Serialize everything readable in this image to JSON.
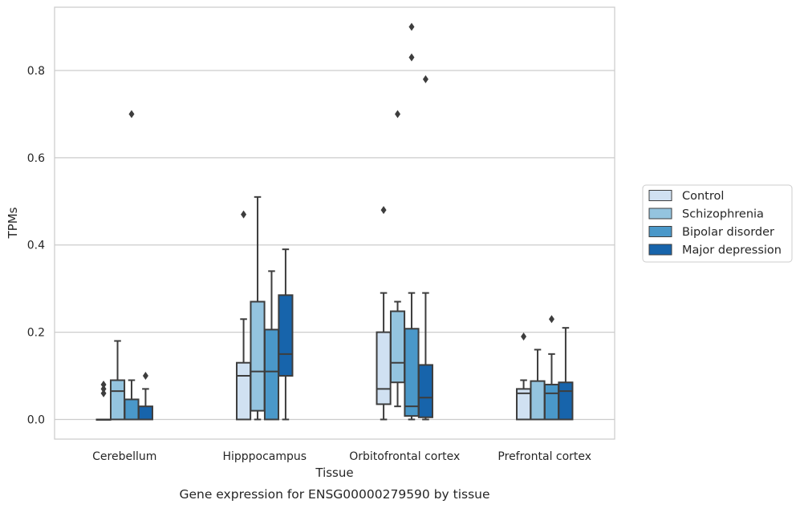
{
  "chart_data": {
    "type": "boxplot",
    "title": "",
    "caption": "Gene expression for ENSG00000279590 by tissue",
    "xlabel": "Tissue",
    "ylabel": "TPMs",
    "ylim": [
      -0.045,
      0.945
    ],
    "yticks": [
      0.0,
      0.2,
      0.4,
      0.6,
      0.8
    ],
    "ytick_labels": [
      "0.0",
      "0.2",
      "0.4",
      "0.6",
      "0.8"
    ],
    "grid": "horizontal",
    "legend_position": "right",
    "categories": [
      "Cerebellum",
      "Hipppocampus",
      "Orbitofrontal cortex",
      "Prefrontal cortex"
    ],
    "series": [
      {
        "name": "Control",
        "color": "#d0e1f2",
        "boxes": [
          {
            "q1": 0.0,
            "median": 0.0,
            "q3": 0.0,
            "whisker_low": 0.0,
            "whisker_high": 0.0,
            "outliers": [
              0.06,
              0.07,
              0.08
            ]
          },
          {
            "q1": 0.0,
            "median": 0.1,
            "q3": 0.13,
            "whisker_low": 0.0,
            "whisker_high": 0.23,
            "outliers": [
              0.47
            ]
          },
          {
            "q1": 0.035,
            "median": 0.07,
            "q3": 0.2,
            "whisker_low": 0.0,
            "whisker_high": 0.29,
            "outliers": [
              0.48
            ]
          },
          {
            "q1": 0.0,
            "median": 0.06,
            "q3": 0.07,
            "whisker_low": 0.0,
            "whisker_high": 0.09,
            "outliers": [
              0.19
            ]
          }
        ]
      },
      {
        "name": "Schizophrenia",
        "color": "#94c4df",
        "boxes": [
          {
            "q1": 0.0,
            "median": 0.065,
            "q3": 0.09,
            "whisker_low": 0.0,
            "whisker_high": 0.18,
            "outliers": []
          },
          {
            "q1": 0.02,
            "median": 0.11,
            "q3": 0.27,
            "whisker_low": 0.0,
            "whisker_high": 0.51,
            "outliers": []
          },
          {
            "q1": 0.085,
            "median": 0.13,
            "q3": 0.248,
            "whisker_low": 0.03,
            "whisker_high": 0.27,
            "outliers": [
              0.7
            ]
          },
          {
            "q1": 0.0,
            "median": 0.0,
            "q3": 0.088,
            "whisker_low": 0.0,
            "whisker_high": 0.16,
            "outliers": []
          }
        ]
      },
      {
        "name": "Bipolar disorder",
        "color": "#4a98c9",
        "boxes": [
          {
            "q1": 0.0,
            "median": 0.0,
            "q3": 0.046,
            "whisker_low": 0.0,
            "whisker_high": 0.09,
            "outliers": [
              0.7
            ]
          },
          {
            "q1": 0.0,
            "median": 0.11,
            "q3": 0.206,
            "whisker_low": 0.0,
            "whisker_high": 0.34,
            "outliers": []
          },
          {
            "q1": 0.008,
            "median": 0.03,
            "q3": 0.208,
            "whisker_low": 0.0,
            "whisker_high": 0.29,
            "outliers": [
              0.83,
              0.9
            ]
          },
          {
            "q1": 0.0,
            "median": 0.06,
            "q3": 0.08,
            "whisker_low": 0.0,
            "whisker_high": 0.15,
            "outliers": [
              0.23
            ]
          }
        ]
      },
      {
        "name": "Major depression",
        "color": "#1764ab",
        "boxes": [
          {
            "q1": 0.0,
            "median": 0.0,
            "q3": 0.03,
            "whisker_low": 0.0,
            "whisker_high": 0.07,
            "outliers": [
              0.1
            ]
          },
          {
            "q1": 0.1,
            "median": 0.15,
            "q3": 0.285,
            "whisker_low": 0.0,
            "whisker_high": 0.39,
            "outliers": []
          },
          {
            "q1": 0.005,
            "median": 0.05,
            "q3": 0.125,
            "whisker_low": 0.0,
            "whisker_high": 0.29,
            "outliers": [
              0.78
            ]
          },
          {
            "q1": 0.0,
            "median": 0.065,
            "q3": 0.085,
            "whisker_low": 0.0,
            "whisker_high": 0.21,
            "outliers": []
          }
        ]
      }
    ]
  }
}
